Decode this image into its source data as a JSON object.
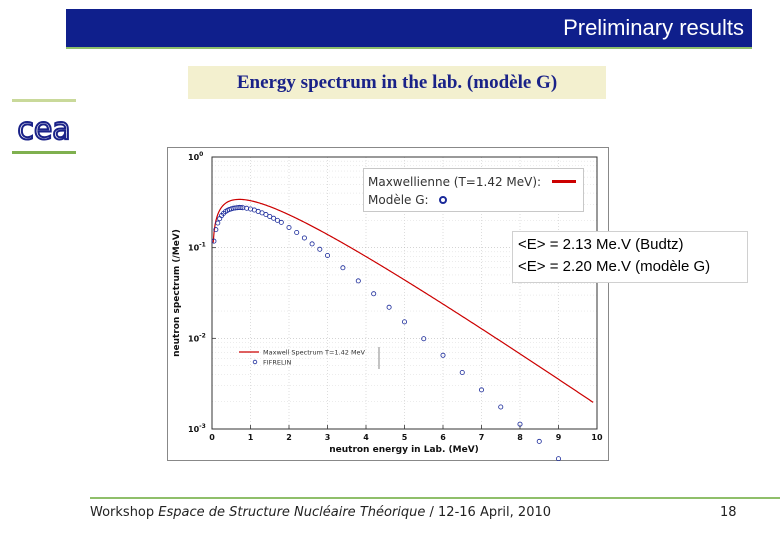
{
  "header": {
    "title": "Preliminary results"
  },
  "subtitle": "Energy spectrum in the lab. (modèle G)",
  "logo": {
    "name": "cea-logo",
    "text": "cea"
  },
  "overlay_legend": {
    "row1": "Maxwellienne (T=1.42 MeV):",
    "row2": "Modèle G:",
    "line_color": "#cc0000",
    "marker_color": "#1a2a9a"
  },
  "mean_energy": {
    "line1": "<E> = 2.13 Me.V (Budtz)",
    "line2": "<E> = 2.20 Me.V (modèle G)"
  },
  "footer": {
    "prefix": "Workshop ",
    "italic": "Espace de Structure Nucléaire Théorique",
    "suffix": " / 12-16 April, 2010",
    "page": "18"
  },
  "chart_data": {
    "type": "line",
    "xlabel": "neutron energy in Lab. (MeV)",
    "ylabel": "neutron spectrum (/MeV)",
    "xlim": [
      0,
      10
    ],
    "ylim_log10": [
      -3,
      0
    ],
    "y_scale": "log",
    "x_ticks": [
      "0",
      "1",
      "2",
      "3",
      "4",
      "5",
      "6",
      "7",
      "8",
      "9",
      "10"
    ],
    "y_ticks": [
      {
        "base": "10",
        "exp": "0"
      },
      {
        "base": "10",
        "exp": "-1"
      },
      {
        "base": "10",
        "exp": "-2"
      },
      {
        "base": "10",
        "exp": "-3"
      }
    ],
    "legend": {
      "placement": "lower-left",
      "entries": [
        "Maxwell Spectrum T=1.42 MeV",
        "FIFRELIN"
      ]
    },
    "series": [
      {
        "name": "Maxwell Spectrum T=1.42 MeV",
        "kind": "line",
        "color": "#cc0000",
        "temperature_MeV": 1.42
      },
      {
        "name": "FIFRELIN",
        "kind": "scatter",
        "color": "#1a2a9a",
        "x": [
          0.05,
          0.1,
          0.15,
          0.2,
          0.25,
          0.3,
          0.35,
          0.4,
          0.45,
          0.5,
          0.55,
          0.6,
          0.65,
          0.7,
          0.75,
          0.8,
          0.9,
          1.0,
          1.1,
          1.2,
          1.3,
          1.4,
          1.5,
          1.6,
          1.7,
          1.8,
          2.0,
          2.2,
          2.4,
          2.6,
          2.8,
          3.0,
          3.4,
          3.8,
          4.2,
          4.6,
          5.0,
          5.5,
          6.0,
          6.5,
          7.0,
          7.5,
          8.0,
          8.5,
          9.0,
          9.5
        ],
        "y": [
          0.118,
          0.158,
          0.187,
          0.209,
          0.226,
          0.239,
          0.25,
          0.258,
          0.264,
          0.268,
          0.272,
          0.274,
          0.276,
          0.277,
          0.277,
          0.276,
          0.272,
          0.267,
          0.26,
          0.251,
          0.242,
          0.232,
          0.221,
          0.211,
          0.2,
          0.19,
          0.167,
          0.147,
          0.128,
          0.11,
          0.096,
          0.082,
          0.06,
          0.043,
          0.031,
          0.022,
          0.0152,
          0.0099,
          0.0065,
          0.0042,
          0.0027,
          0.00175,
          0.00113,
          0.00073,
          0.00047,
          0.0003
        ]
      }
    ]
  }
}
